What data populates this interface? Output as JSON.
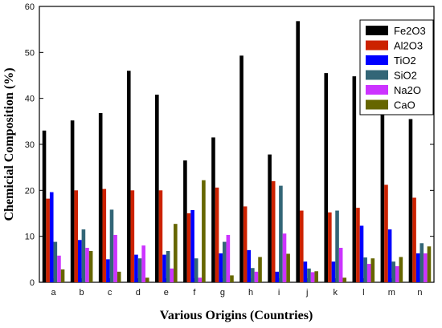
{
  "chart_data": {
    "type": "bar",
    "title": "",
    "xlabel": "Various Origins (Countries)",
    "ylabel": "Chemicial Composition (%)",
    "ylim": [
      0,
      60
    ],
    "yticks": [
      "0",
      "10",
      "20",
      "30",
      "40",
      "50",
      "60"
    ],
    "categories": [
      "a",
      "b",
      "c",
      "d",
      "e",
      "f",
      "g",
      "h",
      "i",
      "j",
      "k",
      "l",
      "m",
      "n"
    ],
    "grid": false,
    "legend_position": "top-right",
    "series": [
      {
        "name": "Fe2O3",
        "color": "#000000",
        "values": [
          33,
          35.2,
          36.8,
          46,
          40.8,
          26.5,
          31.5,
          49.3,
          27.8,
          56.8,
          45.5,
          44.8,
          37.4,
          35.5
        ]
      },
      {
        "name": "Al2O3",
        "color": "#cc2200",
        "values": [
          18.2,
          20,
          20.3,
          20,
          20,
          15,
          20.6,
          16.5,
          22,
          15.6,
          15.2,
          16.2,
          21.2,
          18.4
        ]
      },
      {
        "name": "TiO2",
        "color": "#0000ff",
        "values": [
          19.6,
          9.2,
          5,
          6,
          6,
          15.7,
          6.3,
          7,
          2.3,
          4.5,
          4.5,
          12.3,
          11.5,
          6.3
        ]
      },
      {
        "name": "SiO2",
        "color": "#336677",
        "values": [
          8.8,
          11.5,
          15.8,
          5.2,
          6.8,
          5.2,
          8.8,
          3.1,
          21,
          3,
          15.6,
          5.4,
          4.5,
          8.5
        ]
      },
      {
        "name": "Na2O",
        "color": "#cc33ff",
        "values": [
          5.8,
          7.5,
          10.3,
          8,
          3,
          1,
          10.3,
          2.3,
          10.6,
          2.2,
          7.5,
          4,
          3.5,
          6.3
        ]
      },
      {
        "name": "CaO",
        "color": "#666600",
        "values": [
          2.8,
          6.8,
          2.3,
          1,
          12.7,
          22.2,
          1.5,
          5.5,
          6.2,
          2.4,
          1,
          5.2,
          5.5,
          7.8
        ]
      }
    ]
  }
}
